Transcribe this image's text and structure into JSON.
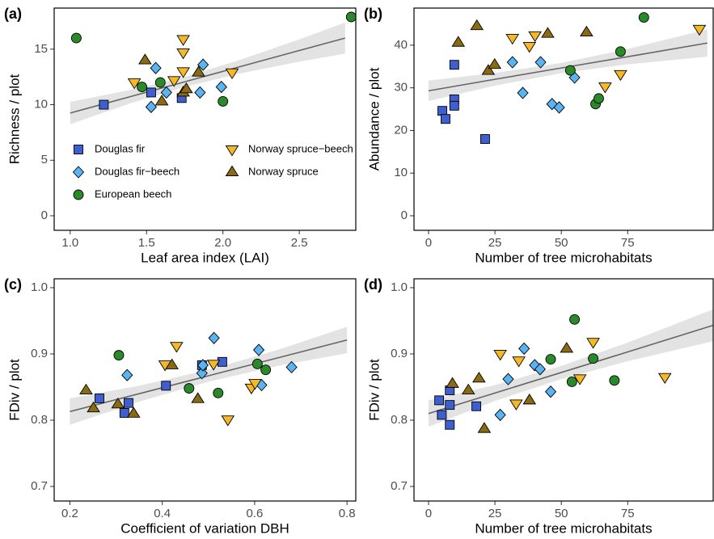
{
  "chart_data": [
    {
      "type": "scatter",
      "panel_label": "(a)",
      "x_label": "Leaf area index (LAI)",
      "y_label": "Richness / plot",
      "xlim": [
        0.895,
        2.87
      ],
      "ylim": [
        -1.31,
        18.7
      ],
      "xticks": [
        {
          "value": 1.0,
          "label": "1.0"
        },
        1.5,
        {
          "value": 2.0,
          "label": "2.0"
        },
        2.5
      ],
      "yticks": [
        0,
        5,
        10,
        15
      ],
      "legend": "lower left",
      "series": [
        {
          "name": "Douglas fir",
          "color": "#3f5fcf",
          "marker": "square",
          "x": [
            1.22,
            1.53,
            1.73
          ],
          "values": [
            10.0,
            11.1,
            10.6
          ]
        },
        {
          "name": "Douglas fir−beech",
          "color": "#5ab4f2",
          "marker": "diamond",
          "x": [
            1.56,
            1.53,
            1.63,
            1.85,
            1.87,
            1.99
          ],
          "values": [
            13.3,
            9.8,
            11.1,
            11.1,
            13.6,
            11.6
          ]
        },
        {
          "name": "European beech",
          "color": "#2a8a2a",
          "marker": "circle",
          "x": [
            1.04,
            1.47,
            1.59,
            2.0,
            2.84
          ],
          "values": [
            16.0,
            11.6,
            12.0,
            10.3,
            17.9
          ]
        },
        {
          "name": "Norway spruce−beech",
          "color": "#f5b829",
          "marker": "triangle-down",
          "x": [
            1.42,
            1.68,
            1.74,
            1.74,
            1.74,
            2.06
          ],
          "values": [
            12.0,
            12.2,
            15.9,
            14.7,
            13.0,
            12.9
          ]
        },
        {
          "name": "Norway spruce",
          "color": "#8b6a14",
          "marker": "triangle-up",
          "x": [
            1.49,
            1.6,
            1.74,
            1.76,
            1.84
          ],
          "values": [
            14.0,
            10.3,
            11.1,
            11.4,
            12.9
          ]
        }
      ],
      "fit": {
        "x": [
          1.0,
          1.4,
          1.75,
          2.1,
          2.5,
          2.8
        ],
        "y": [
          9.25,
          10.75,
          12.06,
          13.38,
          14.88,
          16.0
        ],
        "lower": [
          8.25,
          10.15,
          11.61,
          12.78,
          13.88,
          14.6
        ],
        "upper": [
          10.25,
          11.35,
          12.51,
          13.98,
          15.88,
          17.4
        ]
      }
    },
    {
      "type": "scatter",
      "panel_label": "(b)",
      "x_label": "Number of tree microhabitats",
      "y_label": "Abundance / plot",
      "xlim": [
        -5.47,
        107.2
      ],
      "ylim": [
        -3.41,
        48.7
      ],
      "xticks": [
        0,
        25,
        50,
        75
      ],
      "yticks": [
        0,
        10,
        20,
        30,
        40
      ],
      "series": [
        {
          "color": "#3f5fcf",
          "marker": "square",
          "x": [
            5.2,
            6.4,
            9.7,
            9.7,
            9.7,
            21.3
          ],
          "values": [
            24.6,
            22.7,
            35.4,
            27.3,
            25.8,
            18.0
          ]
        },
        {
          "color": "#5ab4f2",
          "marker": "diamond",
          "x": [
            31.6,
            35.5,
            42.2,
            46.5,
            49.2,
            55.0
          ],
          "values": [
            36.0,
            28.8,
            36.0,
            26.2,
            25.4,
            32.4
          ]
        },
        {
          "color": "#2a8a2a",
          "marker": "circle",
          "x": [
            53.4,
            62.9,
            64.1,
            72.3,
            81.1
          ],
          "values": [
            34.1,
            26.2,
            27.5,
            38.5,
            46.5
          ]
        },
        {
          "color": "#f5b829",
          "marker": "triangle-down",
          "x": [
            31.6,
            38.0,
            40.1,
            66.5,
            72.3,
            102.0
          ],
          "values": [
            41.7,
            39.8,
            42.3,
            30.3,
            33.2,
            43.8
          ]
        },
        {
          "color": "#8b6a14",
          "marker": "triangle-up",
          "x": [
            11.2,
            18.2,
            22.5,
            24.9,
            44.9,
            59.5
          ],
          "values": [
            40.6,
            44.5,
            34.0,
            35.4,
            42.7,
            43.0
          ]
        }
      ],
      "fit": {
        "x": [
          0,
          25,
          50,
          75,
          105
        ],
        "y": [
          29.3,
          32.0,
          34.65,
          37.3,
          40.5
        ],
        "lower": [
          26.9,
          30.5,
          33.45,
          35.5,
          37.3
        ],
        "upper": [
          31.7,
          33.5,
          35.85,
          39.1,
          43.7
        ]
      }
    },
    {
      "type": "scatter",
      "panel_label": "(c)",
      "x_label": "Coefficient of variation DBH",
      "y_label": "FDiv / plot",
      "xlim": [
        0.166,
        0.819
      ],
      "ylim": [
        0.678,
        1.0134
      ],
      "xticks": [
        0.2,
        0.4,
        0.6,
        0.8
      ],
      "yticks": [
        0.7,
        0.8,
        0.9,
        {
          "value": 1.0,
          "label": "1.0"
        }
      ],
      "series": [
        {
          "color": "#3f5fcf",
          "marker": "square",
          "x": [
            0.264,
            0.318,
            0.327,
            0.408,
            0.486,
            0.53
          ],
          "values": [
            0.833,
            0.811,
            0.826,
            0.852,
            0.883,
            0.888
          ]
        },
        {
          "color": "#5ab4f2",
          "marker": "diamond",
          "x": [
            0.324,
            0.486,
            0.488,
            0.512,
            0.609,
            0.615,
            0.68
          ],
          "values": [
            0.868,
            0.871,
            0.883,
            0.924,
            0.906,
            0.853,
            0.88
          ]
        },
        {
          "color": "#2a8a2a",
          "marker": "circle",
          "x": [
            0.306,
            0.458,
            0.521,
            0.606,
            0.624
          ],
          "values": [
            0.898,
            0.848,
            0.841,
            0.885,
            0.876
          ]
        },
        {
          "color": "#f5b829",
          "marker": "triangle-down",
          "x": [
            0.406,
            0.431,
            0.511,
            0.542,
            0.593,
            0.601
          ],
          "values": [
            0.884,
            0.912,
            0.885,
            0.801,
            0.849,
            0.856
          ]
        },
        {
          "color": "#8b6a14",
          "marker": "triangle-up",
          "x": [
            0.235,
            0.251,
            0.304,
            0.338,
            0.421,
            0.477
          ],
          "values": [
            0.845,
            0.818,
            0.824,
            0.81,
            0.883,
            0.832
          ]
        }
      ],
      "fit": {
        "x": [
          0.2,
          0.35,
          0.5,
          0.65,
          0.8
        ],
        "y": [
          0.813,
          0.84,
          0.867,
          0.894,
          0.921
        ],
        "lower": [
          0.793,
          0.828,
          0.858,
          0.882,
          0.901
        ],
        "upper": [
          0.833,
          0.852,
          0.876,
          0.906,
          0.941
        ]
      }
    },
    {
      "type": "scatter",
      "panel_label": "(d)",
      "x_label": "Number of tree microhabitats",
      "y_label": "FDiv / plot",
      "xlim": [
        -5.47,
        107.2
      ],
      "ylim": [
        0.678,
        1.0134
      ],
      "xticks": [
        0,
        25,
        50,
        75
      ],
      "yticks": [
        0.7,
        0.8,
        0.9,
        {
          "value": 1.0,
          "label": "1.0"
        }
      ],
      "series": [
        {
          "color": "#3f5fcf",
          "marker": "square",
          "x": [
            4.0,
            5.0,
            8.0,
            8.0,
            8.0,
            18.0
          ],
          "values": [
            0.83,
            0.808,
            0.845,
            0.823,
            0.793,
            0.821
          ]
        },
        {
          "color": "#5ab4f2",
          "marker": "diamond",
          "x": [
            27.0,
            30.0,
            36.0,
            40.0,
            42.0,
            46.0
          ],
          "values": [
            0.808,
            0.862,
            0.908,
            0.883,
            0.877,
            0.843
          ]
        },
        {
          "color": "#2a8a2a",
          "marker": "circle",
          "x": [
            46.0,
            54.0,
            55.0,
            62.0,
            70.0
          ],
          "values": [
            0.892,
            0.858,
            0.952,
            0.893,
            0.86
          ]
        },
        {
          "color": "#f5b829",
          "marker": "triangle-down",
          "x": [
            27.0,
            33.0,
            34.0,
            57.0,
            62.0,
            89.0
          ],
          "values": [
            0.9,
            0.825,
            0.89,
            0.863,
            0.918,
            0.865
          ]
        },
        {
          "color": "#8b6a14",
          "marker": "triangle-up",
          "x": [
            9.0,
            19.0,
            21.0,
            15.0,
            38.0,
            52.0
          ],
          "values": [
            0.855,
            0.863,
            0.787,
            0.845,
            0.83,
            0.908
          ]
        }
      ],
      "fit": {
        "x": [
          0,
          25,
          50,
          75,
          107
        ],
        "y": [
          0.81,
          0.841,
          0.872,
          0.903,
          0.943
        ],
        "lower": [
          0.79,
          0.829,
          0.862,
          0.889,
          0.919
        ],
        "upper": [
          0.83,
          0.853,
          0.882,
          0.917,
          0.967
        ]
      }
    }
  ]
}
